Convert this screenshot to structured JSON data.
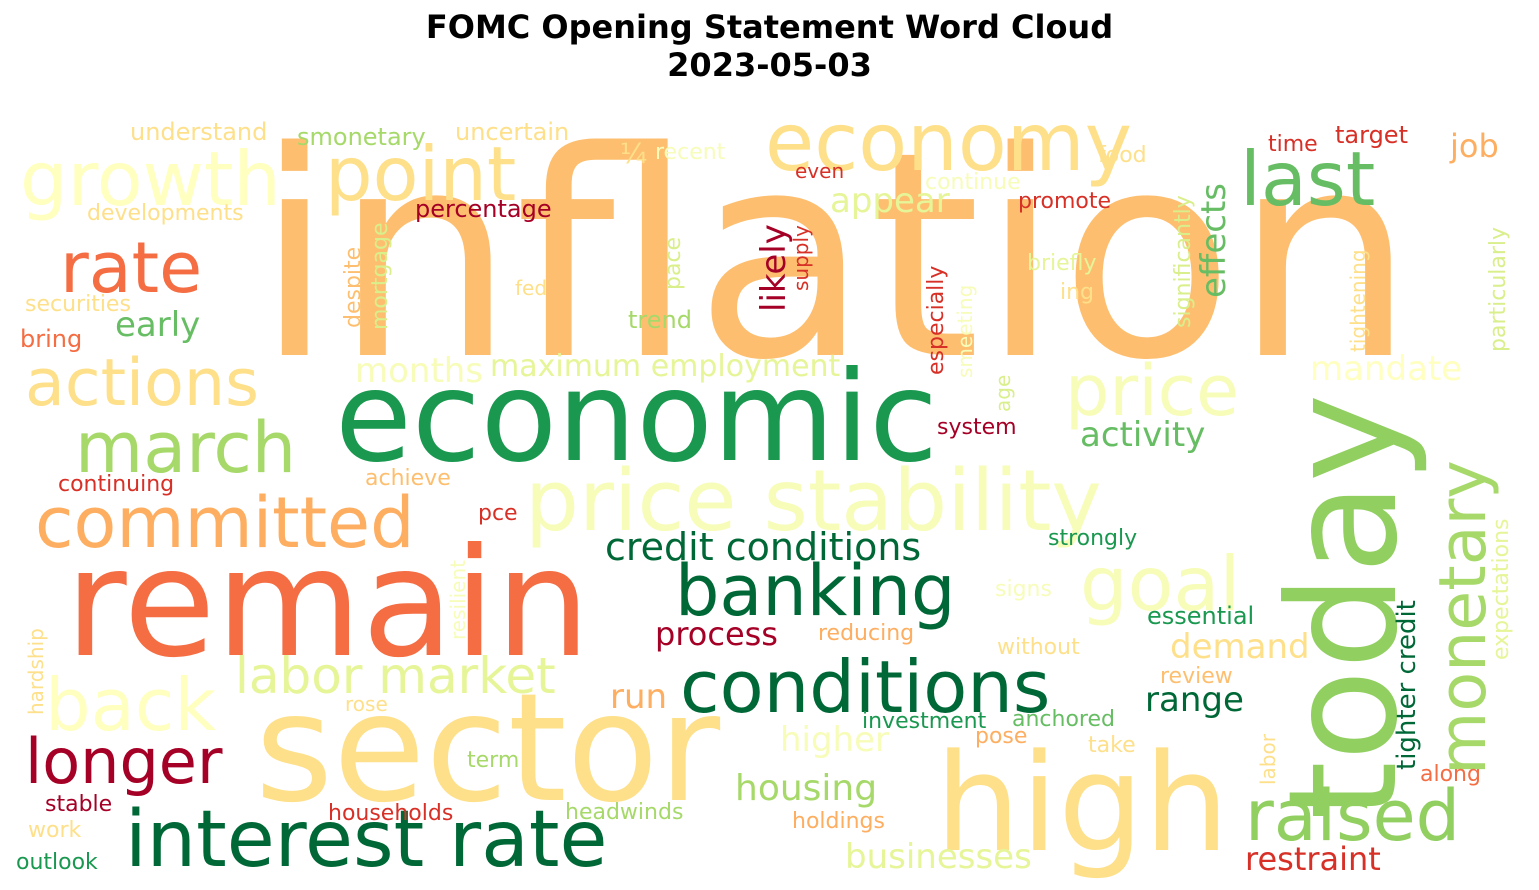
{
  "chart_data": {
    "type": "wordcloud",
    "title": "FOMC Opening Statement Word Cloud",
    "subtitle": "2023-05-03",
    "colormap": "RdYlGn",
    "words": [
      {
        "text": "inflation",
        "color": "#fdbf6f"
      },
      {
        "text": "economic",
        "color": "#1a9850"
      },
      {
        "text": "remain",
        "color": "#f46d43"
      },
      {
        "text": "sector",
        "color": "#fee08b"
      },
      {
        "text": "today",
        "color": "#91cf60"
      },
      {
        "text": "high",
        "color": "#fee08b"
      },
      {
        "text": "price stability",
        "color": "#f7fcb9"
      },
      {
        "text": "economy",
        "color": "#fee08b"
      },
      {
        "text": "growth",
        "color": "#ffffbf"
      },
      {
        "text": "point",
        "color": "#fee08b"
      },
      {
        "text": "last",
        "color": "#66bd63"
      },
      {
        "text": "rate",
        "color": "#f46d43"
      },
      {
        "text": "actions",
        "color": "#fee08b"
      },
      {
        "text": "price",
        "color": "#f7fcb9"
      },
      {
        "text": "march",
        "color": "#a6d96a"
      },
      {
        "text": "committed",
        "color": "#fdae61"
      },
      {
        "text": "monetary",
        "color": "#a6d96a"
      },
      {
        "text": "banking",
        "color": "#006837"
      },
      {
        "text": "goal",
        "color": "#f7fcb9"
      },
      {
        "text": "conditions",
        "color": "#006837"
      },
      {
        "text": "back",
        "color": "#ffffbf"
      },
      {
        "text": "labor market",
        "color": "#e6f598"
      },
      {
        "text": "longer",
        "color": "#a50026"
      },
      {
        "text": "interest rate",
        "color": "#006837"
      },
      {
        "text": "raised",
        "color": "#91cf60"
      },
      {
        "text": "credit conditions",
        "color": "#006837"
      },
      {
        "text": "activity",
        "color": "#66bd63"
      },
      {
        "text": "months",
        "color": "#f7fcb9"
      },
      {
        "text": "maximum employment",
        "color": "#e6f598"
      },
      {
        "text": "mandate",
        "color": "#ffffbf"
      },
      {
        "text": "demand",
        "color": "#fee08b"
      },
      {
        "text": "effects",
        "color": "#66bd63"
      },
      {
        "text": "appear",
        "color": "#e6f598"
      },
      {
        "text": "likely",
        "color": "#a50026"
      },
      {
        "text": "early",
        "color": "#66bd63"
      },
      {
        "text": "process",
        "color": "#a50026"
      },
      {
        "text": "range",
        "color": "#006837"
      },
      {
        "text": "run",
        "color": "#fdae61"
      },
      {
        "text": "housing",
        "color": "#a6d96a"
      },
      {
        "text": "higher",
        "color": "#f7fcb9"
      },
      {
        "text": "businesses",
        "color": "#e6f598"
      },
      {
        "text": "restraint",
        "color": "#d73027"
      },
      {
        "text": "job",
        "color": "#fdae61"
      },
      {
        "text": "tighter credit",
        "color": "#006837"
      },
      {
        "text": "expectations",
        "color": "#e6f598"
      },
      {
        "text": "particularly",
        "color": "#d9ef8b"
      },
      {
        "text": "tightening",
        "color": "#fee08b"
      },
      {
        "text": "significantly",
        "color": "#d9ef8b"
      },
      {
        "text": "target",
        "color": "#d73027"
      },
      {
        "text": "time",
        "color": "#d73027"
      },
      {
        "text": "food",
        "color": "#fee08b"
      },
      {
        "text": "promote",
        "color": "#d73027"
      },
      {
        "text": "continue",
        "color": "#f7fcb9"
      },
      {
        "text": "even",
        "color": "#d73027"
      },
      {
        "text": "recent",
        "color": "#f7fcb9"
      },
      {
        "text": "¼",
        "color": "#fee08b"
      },
      {
        "text": "uncertain",
        "color": "#fee08b"
      },
      {
        "text": "smonetary",
        "color": "#a6d96a"
      },
      {
        "text": "understand",
        "color": "#fee08b"
      },
      {
        "text": "developments",
        "color": "#fee08b"
      },
      {
        "text": "percentage",
        "color": "#a50026"
      },
      {
        "text": "securities",
        "color": "#fee08b"
      },
      {
        "text": "bring",
        "color": "#f46d43"
      },
      {
        "text": "fed",
        "color": "#fee08b"
      },
      {
        "text": "trend",
        "color": "#a6d96a"
      },
      {
        "text": "pace",
        "color": "#d9ef8b"
      },
      {
        "text": "despite",
        "color": "#fdbf6f"
      },
      {
        "text": "mortgage",
        "color": "#d9ef8b"
      },
      {
        "text": "supply",
        "color": "#d73027"
      },
      {
        "text": "especially",
        "color": "#d73027"
      },
      {
        "text": "smeeting",
        "color": "#f7fcb9"
      },
      {
        "text": "briefly",
        "color": "#e6f598"
      },
      {
        "text": "ing",
        "color": "#fee08b"
      },
      {
        "text": "age",
        "color": "#d9ef8b"
      },
      {
        "text": "system",
        "color": "#a50026"
      },
      {
        "text": "achieve",
        "color": "#fdbf6f"
      },
      {
        "text": "continuing",
        "color": "#d73027"
      },
      {
        "text": "pce",
        "color": "#d73027"
      },
      {
        "text": "strongly",
        "color": "#1a9850"
      },
      {
        "text": "signs",
        "color": "#f7fcb9"
      },
      {
        "text": "resilient",
        "color": "#f7fcb9"
      },
      {
        "text": "essential",
        "color": "#1a9850"
      },
      {
        "text": "reducing",
        "color": "#fdae61"
      },
      {
        "text": "without",
        "color": "#fee08b"
      },
      {
        "text": "review",
        "color": "#fdbf6f"
      },
      {
        "text": "hardship",
        "color": "#fee08b"
      },
      {
        "text": "rose",
        "color": "#fee08b"
      },
      {
        "text": "investment",
        "color": "#1a9850"
      },
      {
        "text": "anchored",
        "color": "#66bd63"
      },
      {
        "text": "pose",
        "color": "#fdae61"
      },
      {
        "text": "take",
        "color": "#fee08b"
      },
      {
        "text": "term",
        "color": "#a6d96a"
      },
      {
        "text": "labor",
        "color": "#fee08b"
      },
      {
        "text": "along",
        "color": "#f46d43"
      },
      {
        "text": "stable",
        "color": "#a50026"
      },
      {
        "text": "households",
        "color": "#d73027"
      },
      {
        "text": "headwinds",
        "color": "#a6d96a"
      },
      {
        "text": "holdings",
        "color": "#fdae61"
      },
      {
        "text": "work",
        "color": "#fee08b"
      },
      {
        "text": "outlook",
        "color": "#1a9850"
      }
    ]
  }
}
